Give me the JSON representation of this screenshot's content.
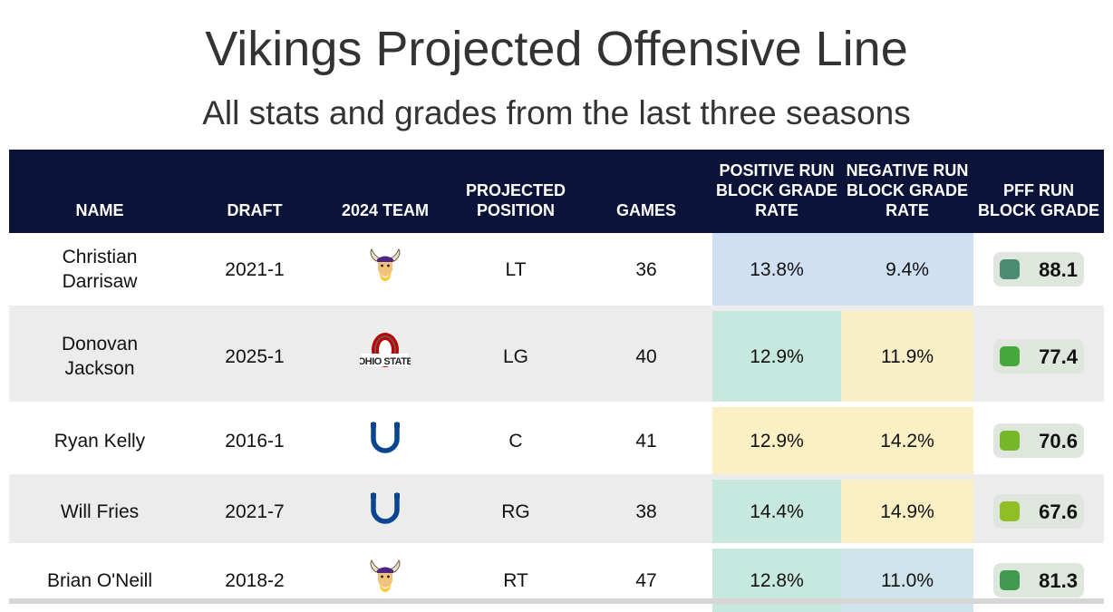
{
  "title": "Vikings Projected Offensive Line",
  "subtitle": "All stats and grades from the last three seasons",
  "columns": {
    "name": "NAME",
    "draft": "DRAFT",
    "team": "2024 TEAM",
    "position": "PROJECTED POSITION",
    "games": "GAMES",
    "pos_rate": "POSITIVE RUN BLOCK GRADE RATE",
    "neg_rate": "NEGATIVE RUN BLOCK GRADE RATE",
    "grade": "PFF RUN BLOCK GRADE"
  },
  "chart_data": {
    "type": "table",
    "title": "Vikings Projected Offensive Line",
    "subtitle": "All stats and grades from the last three seasons",
    "rows": [
      {
        "name": "Christian Darrisaw",
        "draft": "2021-1",
        "team_icon": "vikings-logo",
        "position": "LT",
        "games": "36",
        "pos_rate": "13.8%",
        "neg_rate": "9.4%",
        "grade": "88.1",
        "pos_color": "#cfe0f3",
        "neg_color": "#cfe0f3",
        "grade_color": "#4b8a73"
      },
      {
        "name": "Donovan Jackson",
        "draft": "2025-1",
        "team_icon": "ohio-state-logo",
        "position": "LG",
        "games": "40",
        "pos_rate": "12.9%",
        "neg_rate": "11.9%",
        "grade": "77.4",
        "pos_color": "#c7e8de",
        "neg_color": "#f8efc6",
        "grade_color": "#45a83d"
      },
      {
        "name": "Ryan Kelly",
        "draft": "2016-1",
        "team_icon": "colts-logo",
        "position": "C",
        "games": "41",
        "pos_rate": "12.9%",
        "neg_rate": "14.2%",
        "grade": "70.6",
        "pos_color": "#fbf0c4",
        "neg_color": "#fbf0c4",
        "grade_color": "#77b82b"
      },
      {
        "name": "Will Fries",
        "draft": "2021-7",
        "team_icon": "colts-logo",
        "position": "RG",
        "games": "38",
        "pos_rate": "14.4%",
        "neg_rate": "14.9%",
        "grade": "67.6",
        "pos_color": "#c7e8de",
        "neg_color": "#fbf0c4",
        "grade_color": "#8fbe25"
      },
      {
        "name": "Brian O'Neill",
        "draft": "2018-2",
        "team_icon": "vikings-logo",
        "position": "RT",
        "games": "47",
        "pos_rate": "12.8%",
        "neg_rate": "11.0%",
        "grade": "81.3",
        "pos_color": "#c7e8de",
        "neg_color": "#cfe4ea",
        "grade_color": "#429a4e"
      }
    ]
  }
}
